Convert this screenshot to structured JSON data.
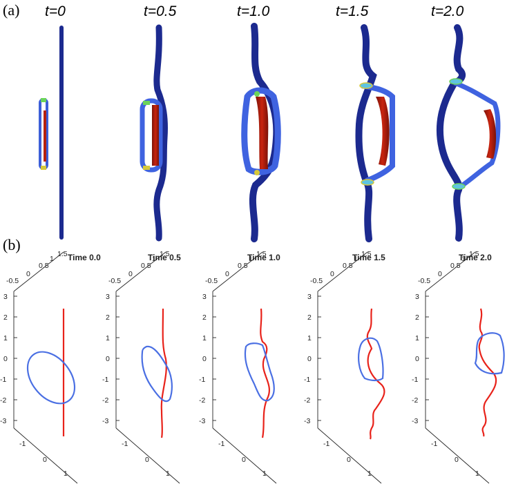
{
  "panel_a": {
    "label": "(a)",
    "frames": [
      {
        "time_label": "t=0"
      },
      {
        "time_label": "t=0.5"
      },
      {
        "time_label": "t=1.0"
      },
      {
        "time_label": "t=1.5"
      },
      {
        "time_label": "t=2.0"
      }
    ]
  },
  "panel_b": {
    "label": "(b)",
    "frames": [
      {
        "time_label": "Time 0.0"
      },
      {
        "time_label": "Time 0.5"
      },
      {
        "time_label": "Time 1.0"
      },
      {
        "time_label": "Time 1.5"
      },
      {
        "time_label": "Time 2.0"
      }
    ],
    "axes": {
      "z_ticks": [
        "3",
        "2",
        "1",
        "0",
        "-1",
        "-2",
        "-3"
      ],
      "x_ticks": [
        "-0.5",
        "0",
        "0.5",
        "1",
        "1.5"
      ],
      "y_ticks": [
        "-1",
        "0",
        "1"
      ]
    }
  },
  "colors": {
    "ring_blue": "#4a6fe3",
    "line_red": "#e8221a",
    "tube_navy": "#1c2a8f",
    "tube_red": "#b5200f",
    "tube_blue_light": "#3f63e0"
  }
}
